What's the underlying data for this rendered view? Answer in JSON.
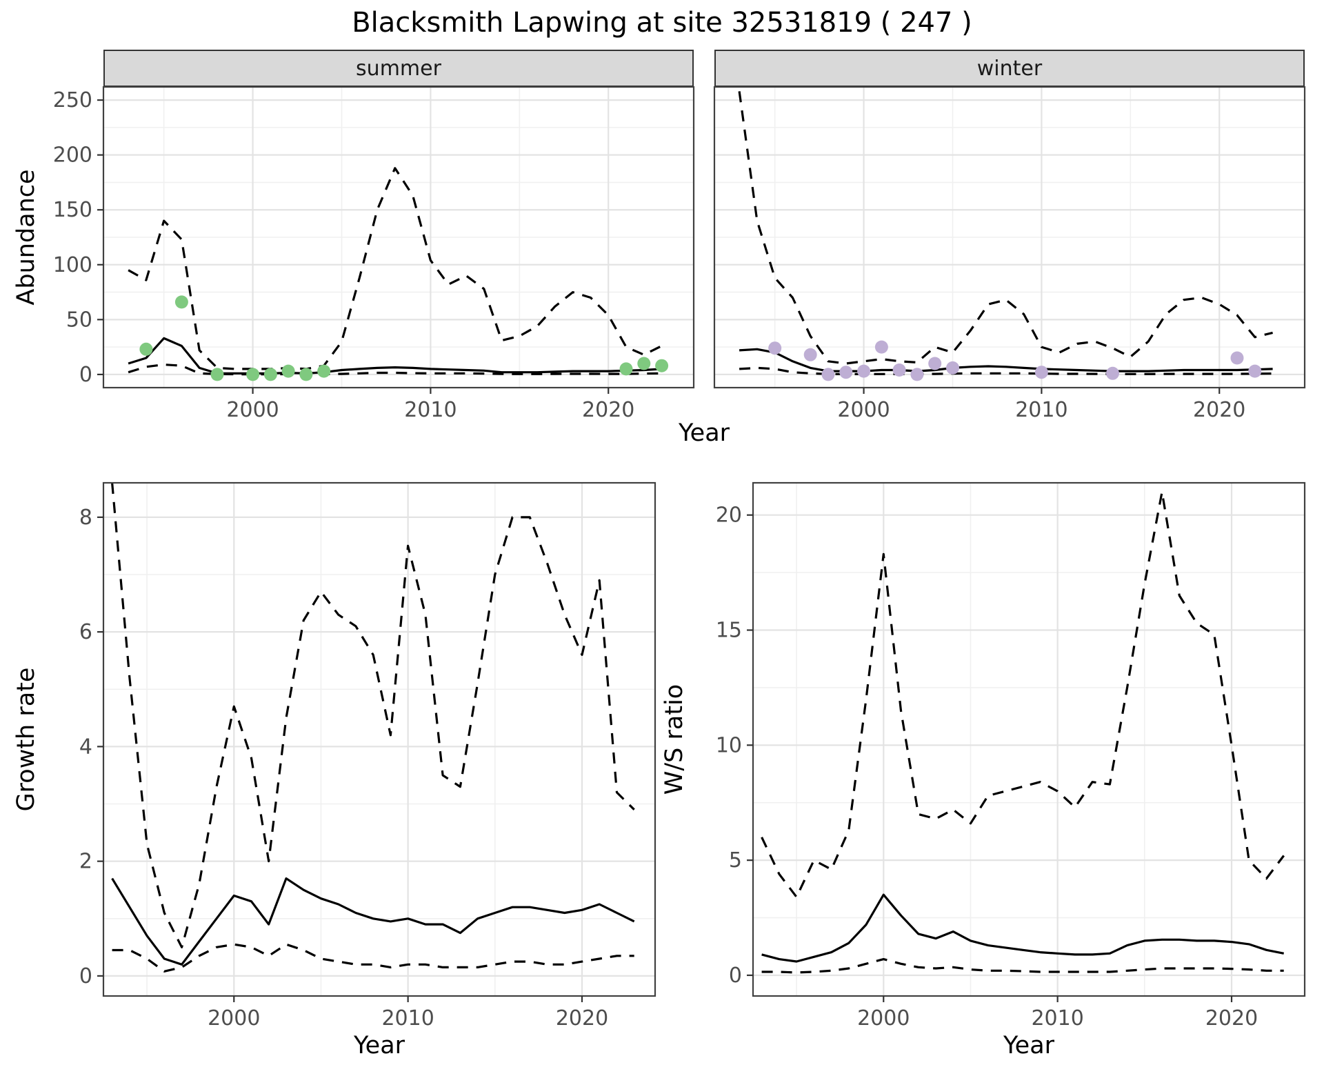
{
  "figure": {
    "title": "Blacksmith Lapwing at site 32531819 ( 247 )",
    "top_row": {
      "facets": [
        "summer",
        "winter"
      ],
      "xlabel": "Year",
      "ylabel": "Abundance"
    },
    "bottom_left": {
      "xlabel": "Year",
      "ylabel": "Growth rate"
    },
    "bottom_right": {
      "xlabel": "Year",
      "ylabel": "W/S ratio"
    }
  },
  "colors": {
    "summer_points": "#7FC97F",
    "winter_points": "#BEAED4",
    "line": "#000000",
    "strip_bg": "#d9d9d9",
    "grid_major": "#e3e3e3",
    "grid_minor": "#f0f0f0"
  },
  "chart_data": [
    {
      "id": "abundance-summer",
      "type": "line",
      "title": "summer",
      "xlabel": "Year",
      "ylabel": "Abundance",
      "xlim": [
        1991.6,
        2024.8
      ],
      "ylim": [
        -12,
        262
      ],
      "xticks": [
        2000,
        2010,
        2020
      ],
      "yticks": [
        0,
        50,
        100,
        150,
        200,
        250
      ],
      "xminor": [
        1995,
        2005,
        2015
      ],
      "yminor": [
        25,
        75,
        125,
        175,
        225
      ],
      "x": [
        1993,
        1994,
        1995,
        1996,
        1997,
        1998,
        1999,
        2000,
        2001,
        2002,
        2003,
        2004,
        2005,
        2006,
        2007,
        2008,
        2009,
        2010,
        2011,
        2012,
        2013,
        2014,
        2015,
        2016,
        2017,
        2018,
        2019,
        2020,
        2021,
        2022,
        2023
      ],
      "series": [
        {
          "name": "upper_ci",
          "style": "dashed",
          "values": [
            95,
            86,
            140,
            123,
            22,
            6,
            5,
            5,
            5,
            6,
            5,
            8,
            30,
            88,
            150,
            188,
            163,
            104,
            82,
            90,
            78,
            31,
            35,
            44,
            62,
            75,
            70,
            54,
            25,
            18,
            26
          ]
        },
        {
          "name": "fit",
          "style": "solid",
          "values": [
            10,
            15,
            33,
            26,
            6,
            1,
            1,
            1,
            1,
            1.5,
            1,
            2,
            4,
            5,
            6,
            6.5,
            6,
            5,
            4.5,
            4,
            3.5,
            2,
            2,
            2,
            2.5,
            3,
            3,
            3,
            3.5,
            4,
            5
          ]
        },
        {
          "name": "lower_ci",
          "style": "dashed",
          "values": [
            2,
            7,
            9,
            8,
            1,
            0.3,
            0.2,
            0.2,
            0.2,
            0.3,
            0.2,
            0.3,
            0.5,
            1,
            1.5,
            1.5,
            1.2,
            1,
            1,
            1,
            0.8,
            0.5,
            0.4,
            0.4,
            0.5,
            0.6,
            0.6,
            0.5,
            0.5,
            0.8,
            1
          ]
        }
      ],
      "points": {
        "name": "observed_counts",
        "color": "#7FC97F",
        "data": [
          [
            1994,
            23
          ],
          [
            1996,
            66
          ],
          [
            1998,
            0
          ],
          [
            2000,
            0
          ],
          [
            2001,
            0
          ],
          [
            2002,
            3
          ],
          [
            2003,
            0
          ],
          [
            2004,
            3
          ],
          [
            2021,
            5
          ],
          [
            2022,
            10
          ],
          [
            2023,
            8
          ]
        ]
      }
    },
    {
      "id": "abundance-winter",
      "type": "line",
      "title": "winter",
      "xlabel": "Year",
      "ylabel": "Abundance",
      "xlim": [
        1991.6,
        2024.8
      ],
      "ylim": [
        -12,
        262
      ],
      "xticks": [
        2000,
        2010,
        2020
      ],
      "yticks": [
        0,
        50,
        100,
        150,
        200,
        250
      ],
      "xminor": [
        1995,
        2005,
        2015
      ],
      "yminor": [
        25,
        75,
        125,
        175,
        225
      ],
      "x": [
        1993,
        1994,
        1995,
        1996,
        1997,
        1998,
        1999,
        2000,
        2001,
        2002,
        2003,
        2004,
        2005,
        2006,
        2007,
        2008,
        2009,
        2010,
        2011,
        2012,
        2013,
        2014,
        2015,
        2016,
        2017,
        2018,
        2019,
        2020,
        2021,
        2022,
        2023
      ],
      "series": [
        {
          "name": "upper_ci",
          "style": "dashed",
          "values": [
            258,
            140,
            88,
            70,
            35,
            12,
            10,
            12,
            14,
            12,
            11,
            25,
            20,
            40,
            64,
            68,
            55,
            25,
            20,
            28,
            30,
            24,
            16,
            30,
            55,
            68,
            70,
            64,
            54,
            34,
            38
          ]
        },
        {
          "name": "fit",
          "style": "solid",
          "values": [
            22,
            23,
            20,
            12,
            6,
            3,
            3,
            3,
            4,
            4,
            3,
            4,
            6,
            7,
            7.5,
            7,
            6,
            5,
            4.5,
            4,
            3.5,
            3,
            3,
            3,
            3.5,
            4,
            4,
            4,
            4,
            4.5,
            5
          ]
        },
        {
          "name": "lower_ci",
          "style": "dashed",
          "values": [
            5,
            6,
            5,
            2,
            1,
            0.3,
            0.3,
            0.3,
            0.4,
            0.4,
            0.3,
            0.5,
            0.8,
            1,
            1,
            1,
            1,
            0.8,
            0.6,
            0.6,
            0.5,
            0.4,
            0.4,
            0.4,
            0.5,
            0.5,
            0.5,
            0.5,
            0.5,
            0.7,
            0.8
          ]
        }
      ],
      "points": {
        "name": "observed_counts",
        "color": "#BEAED4",
        "data": [
          [
            1995,
            24
          ],
          [
            1997,
            18
          ],
          [
            1998,
            0
          ],
          [
            1999,
            2
          ],
          [
            2000,
            3
          ],
          [
            2001,
            25
          ],
          [
            2002,
            4
          ],
          [
            2003,
            0
          ],
          [
            2004,
            10
          ],
          [
            2005,
            6
          ],
          [
            2010,
            2
          ],
          [
            2014,
            1
          ],
          [
            2021,
            15
          ],
          [
            2022,
            3
          ]
        ]
      }
    },
    {
      "id": "growth-rate",
      "type": "line",
      "title": "",
      "xlabel": "Year",
      "ylabel": "Growth rate",
      "xlim": [
        1992.5,
        2024.2
      ],
      "ylim": [
        -0.35,
        8.6
      ],
      "xticks": [
        2000,
        2010,
        2020
      ],
      "yticks": [
        0,
        2,
        4,
        6,
        8
      ],
      "xminor": [
        1995,
        2005,
        2015
      ],
      "yminor": [
        1,
        3,
        5,
        7
      ],
      "x": [
        1993,
        1994,
        1995,
        1996,
        1997,
        1998,
        1999,
        2000,
        2001,
        2002,
        2003,
        2004,
        2005,
        2006,
        2007,
        2008,
        2009,
        2010,
        2011,
        2012,
        2013,
        2014,
        2015,
        2016,
        2017,
        2018,
        2019,
        2020,
        2021,
        2022,
        2023
      ],
      "series": [
        {
          "name": "upper_ci",
          "style": "dashed",
          "values": [
            8.6,
            5.2,
            2.3,
            1.1,
            0.5,
            1.6,
            3.3,
            4.7,
            3.8,
            2.0,
            4.5,
            6.2,
            6.7,
            6.3,
            6.1,
            5.6,
            4.2,
            7.5,
            6.3,
            3.5,
            3.3,
            5.1,
            7.0,
            8.0,
            8.0,
            7.2,
            6.3,
            5.6,
            6.9,
            3.2,
            2.9
          ]
        },
        {
          "name": "fit",
          "style": "solid",
          "values": [
            1.7,
            1.2,
            0.7,
            0.3,
            0.2,
            0.6,
            1.0,
            1.4,
            1.3,
            0.9,
            1.7,
            1.5,
            1.35,
            1.25,
            1.1,
            1.0,
            0.95,
            1.0,
            0.9,
            0.9,
            0.75,
            1.0,
            1.1,
            1.2,
            1.2,
            1.15,
            1.1,
            1.15,
            1.25,
            1.1,
            0.95
          ]
        },
        {
          "name": "lower_ci",
          "style": "dashed",
          "values": [
            0.45,
            0.45,
            0.3,
            0.08,
            0.15,
            0.35,
            0.5,
            0.55,
            0.5,
            0.35,
            0.55,
            0.45,
            0.3,
            0.25,
            0.2,
            0.2,
            0.15,
            0.2,
            0.2,
            0.15,
            0.15,
            0.15,
            0.2,
            0.25,
            0.25,
            0.2,
            0.2,
            0.25,
            0.3,
            0.35,
            0.35
          ]
        }
      ]
    },
    {
      "id": "ws-ratio",
      "type": "line",
      "title": "",
      "xlabel": "Year",
      "ylabel": "W/S ratio",
      "xlim": [
        1992.5,
        2024.2
      ],
      "ylim": [
        -0.9,
        21.4
      ],
      "xticks": [
        2000,
        2010,
        2020
      ],
      "yticks": [
        0,
        5,
        10,
        15,
        20
      ],
      "xminor": [
        1995,
        2005,
        2015
      ],
      "yminor": [
        2.5,
        7.5,
        12.5,
        17.5
      ],
      "x": [
        1993,
        1994,
        1995,
        1996,
        1997,
        1998,
        1999,
        2000,
        2001,
        2002,
        2003,
        2004,
        2005,
        2006,
        2007,
        2008,
        2009,
        2010,
        2011,
        2012,
        2013,
        2014,
        2015,
        2016,
        2017,
        2018,
        2019,
        2020,
        2021,
        2022,
        2023
      ],
      "series": [
        {
          "name": "upper_ci",
          "style": "dashed",
          "values": [
            6.0,
            4.4,
            3.4,
            5.0,
            4.6,
            6.3,
            12.0,
            18.3,
            11.5,
            7.0,
            6.8,
            7.2,
            6.6,
            7.8,
            8.0,
            8.2,
            8.4,
            8.0,
            7.3,
            8.4,
            8.3,
            12.5,
            17.0,
            21.0,
            16.5,
            15.3,
            14.8,
            10.0,
            5.0,
            4.2,
            5.2
          ]
        },
        {
          "name": "fit",
          "style": "solid",
          "values": [
            0.9,
            0.7,
            0.6,
            0.8,
            1.0,
            1.4,
            2.2,
            3.5,
            2.6,
            1.8,
            1.6,
            1.9,
            1.5,
            1.3,
            1.2,
            1.1,
            1.0,
            0.95,
            0.9,
            0.9,
            0.95,
            1.3,
            1.5,
            1.55,
            1.55,
            1.5,
            1.5,
            1.45,
            1.35,
            1.1,
            0.95
          ]
        },
        {
          "name": "lower_ci",
          "style": "dashed",
          "values": [
            0.15,
            0.15,
            0.12,
            0.15,
            0.2,
            0.3,
            0.5,
            0.7,
            0.5,
            0.35,
            0.3,
            0.35,
            0.25,
            0.2,
            0.2,
            0.18,
            0.15,
            0.15,
            0.15,
            0.15,
            0.15,
            0.2,
            0.25,
            0.3,
            0.3,
            0.3,
            0.3,
            0.28,
            0.25,
            0.2,
            0.2
          ]
        }
      ]
    }
  ]
}
